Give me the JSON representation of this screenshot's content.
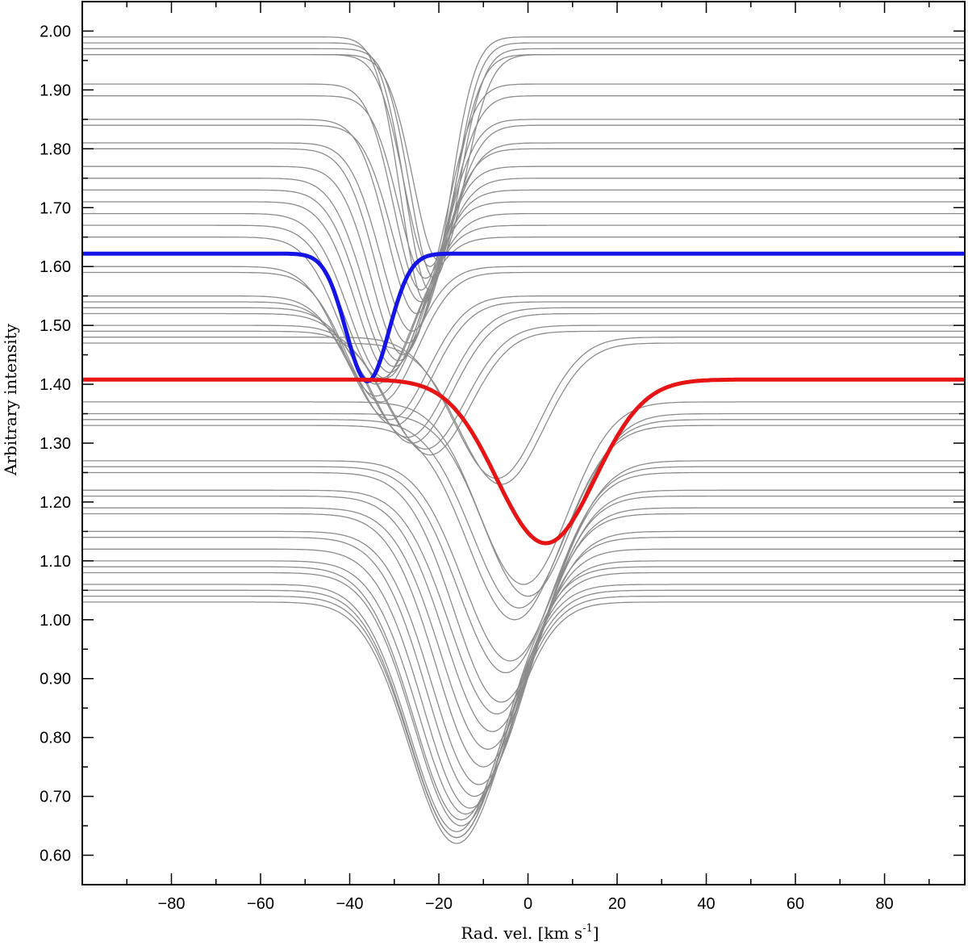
{
  "chart_data": {
    "type": "line",
    "title": "",
    "xlabel": "Rad. vel. [km s",
    "xlabel_sup": "-1",
    "xlabel_end": "]",
    "ylabel": "Arbitrary intensity",
    "xlim": [
      -100,
      98
    ],
    "ylim": [
      0.55,
      2.05
    ],
    "grid": false,
    "xticks": [
      {
        "value": -80,
        "label": "−80"
      },
      {
        "value": -60,
        "label": "−60"
      },
      {
        "value": -40,
        "label": "−40"
      },
      {
        "value": -20,
        "label": "−20"
      },
      {
        "value": 0,
        "label": "0"
      },
      {
        "value": 20,
        "label": "20"
      },
      {
        "value": 40,
        "label": "40"
      },
      {
        "value": 60,
        "label": "60"
      },
      {
        "value": 80,
        "label": "80"
      }
    ],
    "yticks": [
      {
        "value": 0.6,
        "label": "0.60"
      },
      {
        "value": 0.7,
        "label": "0.70"
      },
      {
        "value": 0.8,
        "label": "0.80"
      },
      {
        "value": 0.9,
        "label": "0.90"
      },
      {
        "value": 1.0,
        "label": "1.00"
      },
      {
        "value": 1.1,
        "label": "1.10"
      },
      {
        "value": 1.2,
        "label": "1.20"
      },
      {
        "value": 1.3,
        "label": "1.30"
      },
      {
        "value": 1.4,
        "label": "1.40"
      },
      {
        "value": 1.5,
        "label": "1.50"
      },
      {
        "value": 1.6,
        "label": "1.60"
      },
      {
        "value": 1.7,
        "label": "1.70"
      },
      {
        "value": 1.8,
        "label": "1.80"
      },
      {
        "value": 1.9,
        "label": "1.90"
      },
      {
        "value": 2.0,
        "label": "2.00"
      }
    ],
    "gray_color": "#8c8c8c",
    "series": [
      {
        "continuum": 1.99,
        "center": -23,
        "min": 1.54,
        "width": 5.5
      },
      {
        "continuum": 1.98,
        "center": -22,
        "min": 1.56,
        "width": 5.5
      },
      {
        "continuum": 1.97,
        "center": -21,
        "min": 1.58,
        "width": 5.5
      },
      {
        "continuum": 1.96,
        "center": -22,
        "min": 1.6,
        "width": 5.8
      },
      {
        "continuum": 1.96,
        "center": -20,
        "min": 1.61,
        "width": 5.8
      },
      {
        "continuum": 1.91,
        "center": -24,
        "min": 1.56,
        "width": 6
      },
      {
        "continuum": 1.89,
        "center": -23,
        "min": 1.58,
        "width": 6
      },
      {
        "continuum": 1.85,
        "center": -25,
        "min": 1.52,
        "width": 6.5
      },
      {
        "continuum": 1.84,
        "center": -24,
        "min": 1.54,
        "width": 6.5
      },
      {
        "continuum": 1.81,
        "center": -26,
        "min": 1.49,
        "width": 7
      },
      {
        "continuum": 1.8,
        "center": -27,
        "min": 1.47,
        "width": 7
      },
      {
        "continuum": 1.77,
        "center": -28,
        "min": 1.45,
        "width": 7
      },
      {
        "continuum": 1.75,
        "center": -29,
        "min": 1.44,
        "width": 7.5
      },
      {
        "continuum": 1.73,
        "center": -30,
        "min": 1.43,
        "width": 7.5
      },
      {
        "continuum": 1.71,
        "center": -31,
        "min": 1.42,
        "width": 7.5
      },
      {
        "continuum": 1.69,
        "center": -32,
        "min": 1.41,
        "width": 8
      },
      {
        "continuum": 1.67,
        "center": -33,
        "min": 1.41,
        "width": 8
      },
      {
        "continuum": 1.65,
        "center": -34,
        "min": 1.4,
        "width": 8
      },
      {
        "continuum": 1.6,
        "center": -34,
        "min": 1.38,
        "width": 8
      },
      {
        "continuum": 1.59,
        "center": -33,
        "min": 1.37,
        "width": 8
      },
      {
        "continuum": 1.55,
        "center": -31,
        "min": 1.34,
        "width": 8.5
      },
      {
        "continuum": 1.54,
        "center": -30,
        "min": 1.33,
        "width": 8.5
      },
      {
        "continuum": 1.53,
        "center": -27,
        "min": 1.31,
        "width": 9
      },
      {
        "continuum": 1.52,
        "center": -26,
        "min": 1.3,
        "width": 9
      },
      {
        "continuum": 1.5,
        "center": -23,
        "min": 1.29,
        "width": 9
      },
      {
        "continuum": 1.49,
        "center": -22,
        "min": 1.28,
        "width": 9
      },
      {
        "continuum": 1.48,
        "center": -7,
        "min": 1.24,
        "width": 9.5
      },
      {
        "continuum": 1.47,
        "center": -6,
        "min": 1.23,
        "width": 9.5
      },
      {
        "continuum": 1.37,
        "center": -1,
        "min": 1.06,
        "width": 10
      },
      {
        "continuum": 1.35,
        "center": 0,
        "min": 1.04,
        "width": 10
      },
      {
        "continuum": 1.34,
        "center": -2,
        "min": 1.02,
        "width": 10.5
      },
      {
        "continuum": 1.33,
        "center": -3,
        "min": 1.0,
        "width": 10.5
      },
      {
        "continuum": 1.27,
        "center": -4,
        "min": 0.93,
        "width": 10.5
      },
      {
        "continuum": 1.26,
        "center": -5,
        "min": 0.91,
        "width": 10.5
      },
      {
        "continuum": 1.25,
        "center": -6,
        "min": 0.86,
        "width": 10.5
      },
      {
        "continuum": 1.22,
        "center": -7,
        "min": 0.84,
        "width": 10.5
      },
      {
        "continuum": 1.21,
        "center": -8,
        "min": 0.81,
        "width": 10.5
      },
      {
        "continuum": 1.19,
        "center": -9,
        "min": 0.78,
        "width": 10.5
      },
      {
        "continuum": 1.18,
        "center": -10,
        "min": 0.75,
        "width": 10.5
      },
      {
        "continuum": 1.15,
        "center": -11,
        "min": 0.72,
        "width": 10.5
      },
      {
        "continuum": 1.14,
        "center": -12,
        "min": 0.7,
        "width": 10.5
      },
      {
        "continuum": 1.12,
        "center": -13,
        "min": 0.68,
        "width": 10.5
      },
      {
        "continuum": 1.1,
        "center": -14,
        "min": 0.67,
        "width": 10.5
      },
      {
        "continuum": 1.09,
        "center": -15,
        "min": 0.66,
        "width": 10.5
      },
      {
        "continuum": 1.08,
        "center": -15,
        "min": 0.65,
        "width": 10.5
      },
      {
        "continuum": 1.06,
        "center": -16,
        "min": 0.64,
        "width": 10.5
      },
      {
        "continuum": 1.05,
        "center": -16,
        "min": 0.63,
        "width": 10.5
      },
      {
        "continuum": 1.04,
        "center": -16,
        "min": 0.63,
        "width": 10.5
      },
      {
        "continuum": 1.03,
        "center": -16,
        "min": 0.62,
        "width": 10.5
      }
    ],
    "highlight_series": [
      {
        "color": "#1414e6",
        "continuum": 1.622,
        "center": -36,
        "min": 1.405,
        "width": 4.8
      },
      {
        "color": "#e61414",
        "continuum": 1.408,
        "center": 4,
        "min": 1.13,
        "width": 11
      }
    ]
  }
}
